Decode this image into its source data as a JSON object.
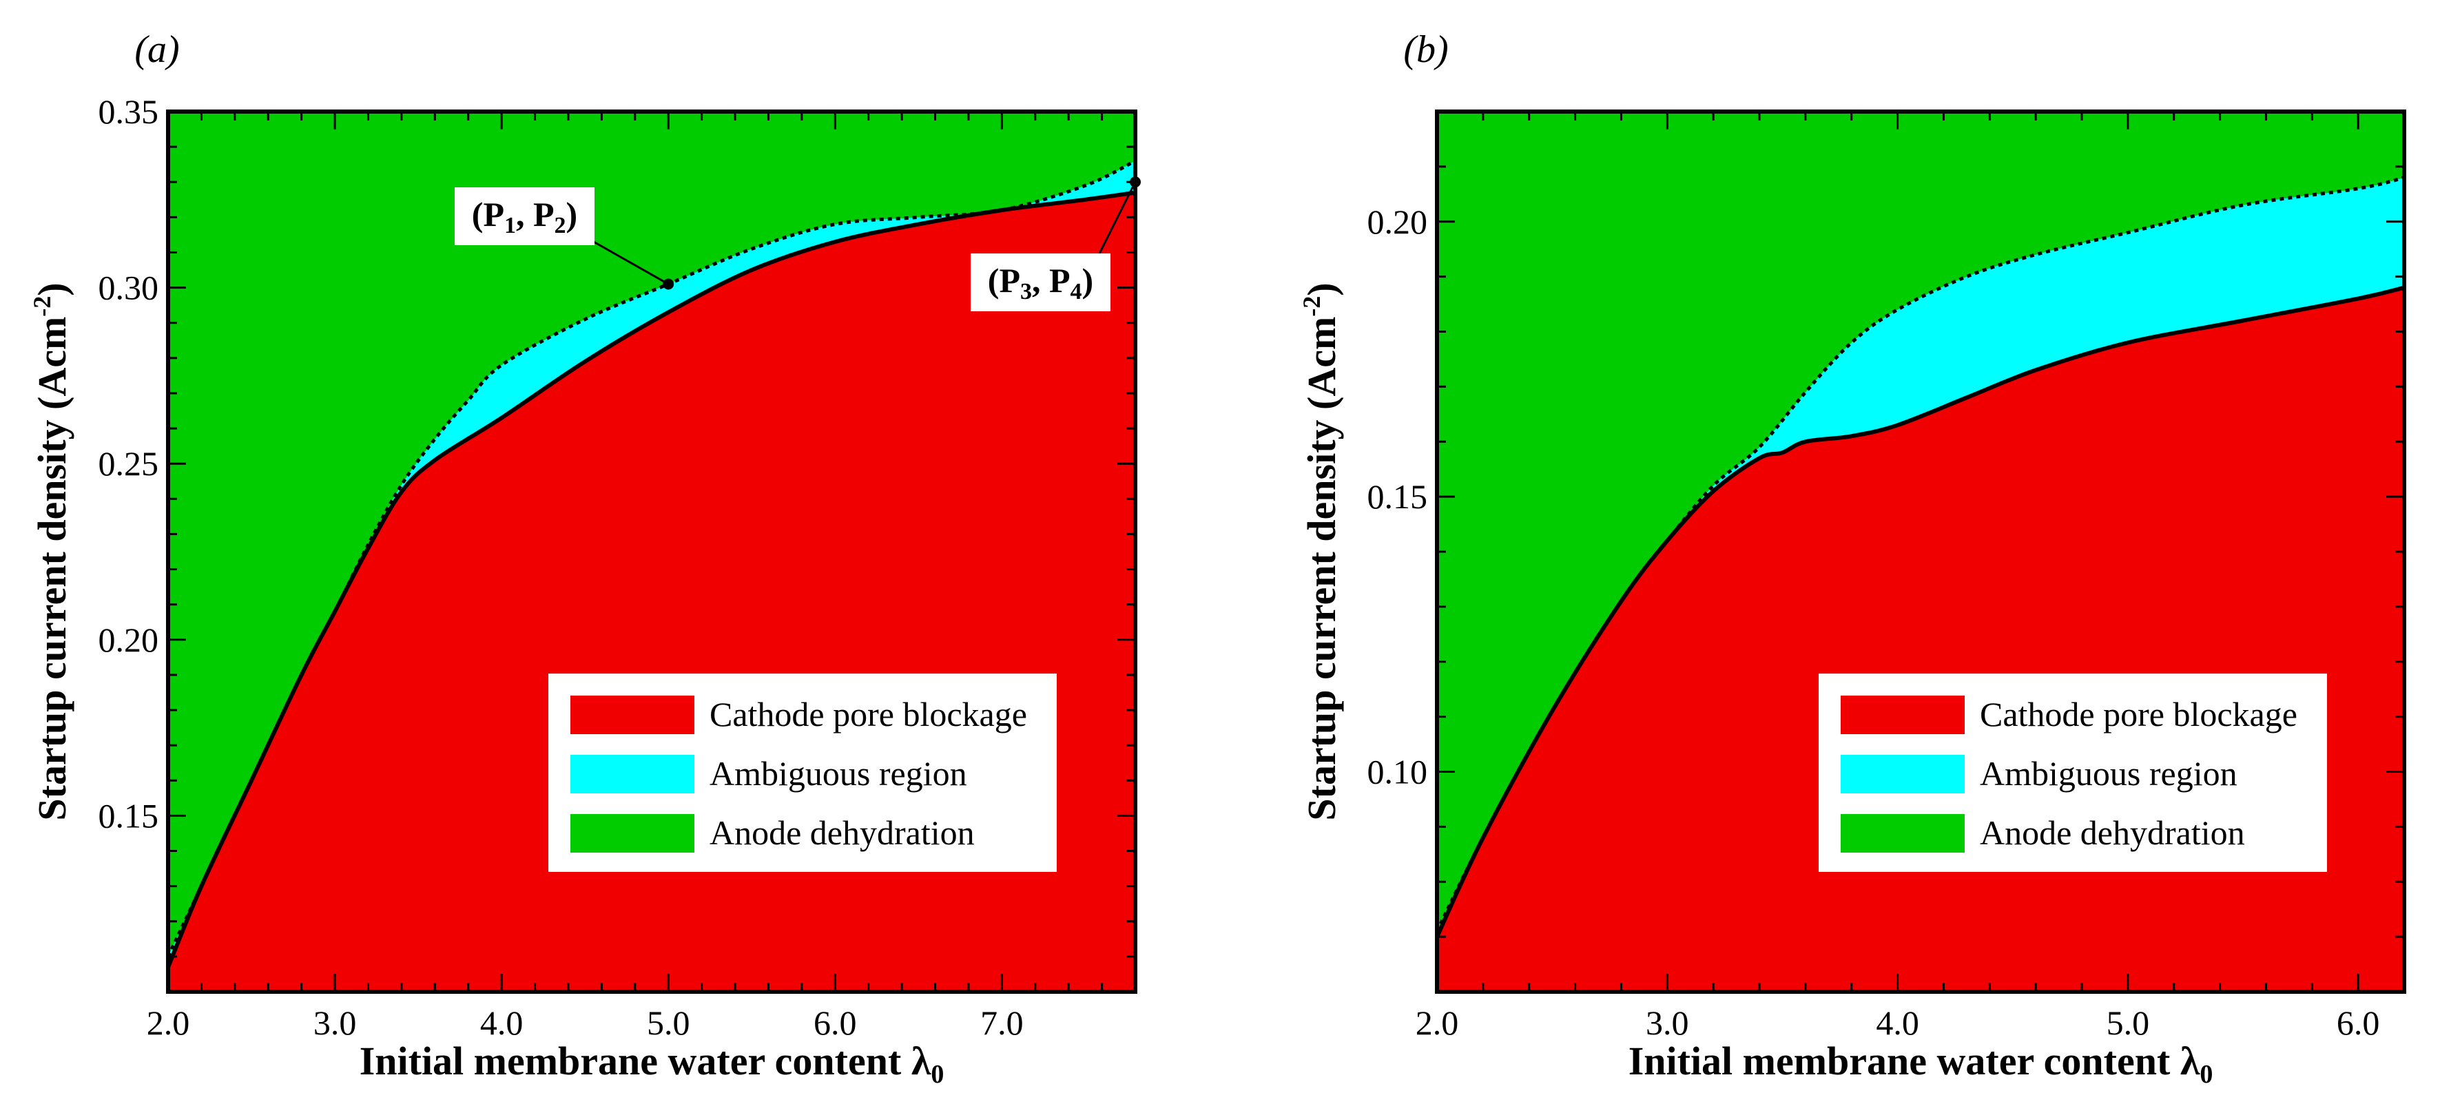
{
  "chart_data": [
    {
      "type": "area",
      "panel_label": "(a)",
      "xlabel": "Initial membrane water content λ",
      "xlabel_subscript": "0",
      "ylabel": "Startup current density (Acm",
      "ylabel_superscript": "-2",
      "ylabel_close": ")",
      "xlim": [
        2.0,
        7.8
      ],
      "ylim": [
        0.1,
        0.35
      ],
      "x_ticks": [
        2.0,
        3.0,
        4.0,
        5.0,
        6.0,
        7.0
      ],
      "x_tick_labels": [
        "2.0",
        "3.0",
        "4.0",
        "5.0",
        "6.0",
        "7.0"
      ],
      "y_ticks": [
        0.15,
        0.2,
        0.25,
        0.3,
        0.35
      ],
      "y_tick_labels": [
        "0.15",
        "0.20",
        "0.25",
        "0.30",
        "0.35"
      ],
      "x_minor_step": 0.2,
      "y_minor_step": 0.01,
      "series": [
        {
          "name": "Cathode pore blockage boundary",
          "line": "solid",
          "x": [
            2.0,
            2.2,
            2.5,
            2.8,
            3.0,
            3.2,
            3.4,
            3.6,
            4.0,
            4.5,
            5.0,
            5.5,
            6.0,
            6.5,
            7.0,
            7.5,
            7.8
          ],
          "y": [
            0.107,
            0.13,
            0.16,
            0.19,
            0.208,
            0.226,
            0.242,
            0.251,
            0.263,
            0.279,
            0.293,
            0.305,
            0.313,
            0.318,
            0.322,
            0.325,
            0.327
          ]
        },
        {
          "name": "Anode dehydration boundary",
          "line": "dotted",
          "x": [
            2.0,
            2.2,
            2.5,
            2.8,
            3.0,
            3.2,
            3.4,
            3.6,
            3.8,
            4.0,
            4.5,
            5.0,
            5.5,
            6.0,
            6.5,
            7.0,
            7.5,
            7.8
          ],
          "y": [
            0.11,
            0.13,
            0.16,
            0.19,
            0.208,
            0.227,
            0.244,
            0.257,
            0.268,
            0.278,
            0.291,
            0.301,
            0.311,
            0.318,
            0.32,
            0.322,
            0.329,
            0.336
          ]
        }
      ],
      "regions": [
        "Cathode pore blockage",
        "Ambiguous region",
        "Anode dehydration"
      ],
      "colors": {
        "Cathode pore blockage": "#f00000",
        "Ambiguous region": "#00ffff",
        "Anode dehydration": "#00cc00"
      },
      "legend": [
        "Cathode pore blockage",
        "Ambiguous region",
        "Anode dehydration"
      ],
      "legend_position": "lower-right",
      "annotations": [
        {
          "text": "(P1, P2)",
          "parts": [
            "(P",
            "1",
            ", P",
            "2",
            ")"
          ],
          "point": [
            5.0,
            0.301
          ],
          "label_side": "upper-left"
        },
        {
          "text": "(P3, P4)",
          "parts": [
            "(P",
            "3",
            ", P",
            "4",
            ")"
          ],
          "point": [
            7.8,
            0.33
          ],
          "label_side": "lower-left"
        }
      ]
    },
    {
      "type": "area",
      "panel_label": "(b)",
      "xlabel": "Initial membrane water content λ",
      "xlabel_subscript": "0",
      "ylabel": "Startup current density (Acm",
      "ylabel_superscript": "-2",
      "ylabel_close": ")",
      "xlim": [
        2.0,
        6.2
      ],
      "ylim": [
        0.06,
        0.22
      ],
      "x_ticks": [
        2.0,
        3.0,
        4.0,
        5.0,
        6.0
      ],
      "x_tick_labels": [
        "2.0",
        "3.0",
        "4.0",
        "5.0",
        "6.0"
      ],
      "y_ticks": [
        0.1,
        0.15,
        0.2
      ],
      "y_tick_labels": [
        "0.10",
        "0.15",
        "0.20"
      ],
      "x_minor_step": 0.2,
      "y_minor_step": 0.01,
      "series": [
        {
          "name": "Cathode pore blockage boundary",
          "line": "solid",
          "x": [
            2.0,
            2.2,
            2.5,
            2.8,
            3.0,
            3.2,
            3.4,
            3.5,
            3.6,
            3.8,
            4.0,
            4.3,
            4.6,
            5.0,
            5.5,
            6.0,
            6.2
          ],
          "y": [
            0.07,
            0.088,
            0.111,
            0.131,
            0.142,
            0.151,
            0.157,
            0.158,
            0.16,
            0.161,
            0.163,
            0.168,
            0.173,
            0.178,
            0.182,
            0.186,
            0.188
          ]
        },
        {
          "name": "Anode dehydration boundary",
          "line": "dotted",
          "x": [
            2.0,
            2.2,
            2.5,
            2.8,
            3.0,
            3.2,
            3.4,
            3.6,
            3.8,
            4.0,
            4.3,
            4.6,
            5.0,
            5.5,
            6.0,
            6.2
          ],
          "y": [
            0.071,
            0.088,
            0.111,
            0.131,
            0.142,
            0.152,
            0.159,
            0.169,
            0.178,
            0.184,
            0.19,
            0.194,
            0.198,
            0.203,
            0.206,
            0.208
          ]
        }
      ],
      "regions": [
        "Cathode pore blockage",
        "Ambiguous region",
        "Anode dehydration"
      ],
      "colors": {
        "Cathode pore blockage": "#f00000",
        "Ambiguous region": "#00ffff",
        "Anode dehydration": "#00cc00"
      },
      "legend": [
        "Cathode pore blockage",
        "Ambiguous region",
        "Anode dehydration"
      ],
      "legend_position": "lower-right",
      "annotations": []
    }
  ]
}
